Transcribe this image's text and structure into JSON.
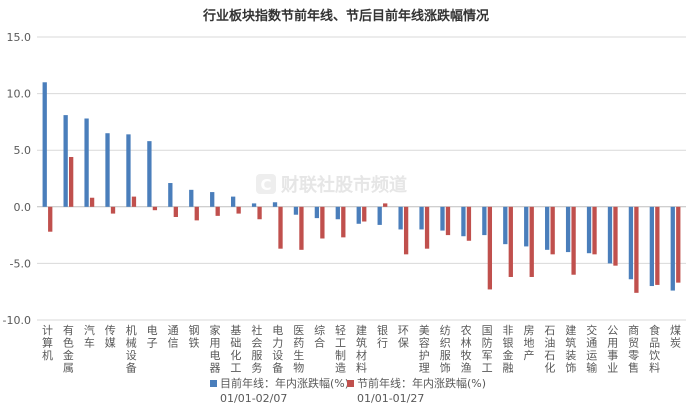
{
  "chart_data": {
    "type": "bar",
    "title": "行业板块指数节前年线、节后目前年线涨跌幅情况",
    "ylim": [
      -10,
      15
    ],
    "yticks": [
      "15.0",
      "10.0",
      "5.0",
      "0.0",
      "-5.0",
      "-10.0"
    ],
    "grid": true,
    "legend_position": "bottom",
    "categories": [
      "计算机",
      "有色金属",
      "汽车",
      "传媒",
      "机械设备",
      "电子",
      "通信",
      "钢铁",
      "家用电器",
      "基础化工",
      "社会服务",
      "电力设备",
      "医药生物",
      "综合",
      "轻工制造",
      "建筑材料",
      "银行",
      "环保",
      "美容护理",
      "纺织服饰",
      "农林牧渔",
      "国防军工",
      "非银金融",
      "房地产",
      "石油石化",
      "建筑装饰",
      "交通运输",
      "公用事业",
      "商贸零售",
      "食品饮料",
      "煤炭"
    ],
    "series": [
      {
        "name": "目前年线：年内涨跌幅(%)",
        "period": "01/01-02/07",
        "color": "#4a7ebb",
        "values": [
          11.0,
          8.1,
          7.8,
          6.5,
          6.4,
          5.8,
          2.1,
          1.5,
          1.3,
          0.9,
          0.3,
          0.4,
          -0.7,
          -1.0,
          -1.1,
          -1.5,
          -1.6,
          -2.0,
          -2.0,
          -2.1,
          -2.6,
          -2.5,
          -3.3,
          -3.5,
          -3.8,
          -4.0,
          -4.1,
          -5.0,
          -6.4,
          -7.0,
          -7.4
        ]
      },
      {
        "name": "节前年线：年内涨跌幅(%)",
        "period": "01/01-01/27",
        "color": "#c0504d",
        "values": [
          -2.2,
          4.4,
          0.8,
          -0.6,
          0.9,
          -0.3,
          -0.9,
          -1.2,
          -0.8,
          -0.6,
          -1.1,
          -3.7,
          -3.8,
          -2.8,
          -2.7,
          -1.3,
          0.3,
          -4.2,
          -3.7,
          -2.5,
          -3.0,
          -7.3,
          -6.2,
          -6.2,
          -4.2,
          -6.0,
          -4.2,
          -5.2,
          -7.6,
          -6.9,
          -6.7
        ]
      }
    ]
  },
  "watermark": {
    "text": "财联社股市频道",
    "logo": "C"
  }
}
